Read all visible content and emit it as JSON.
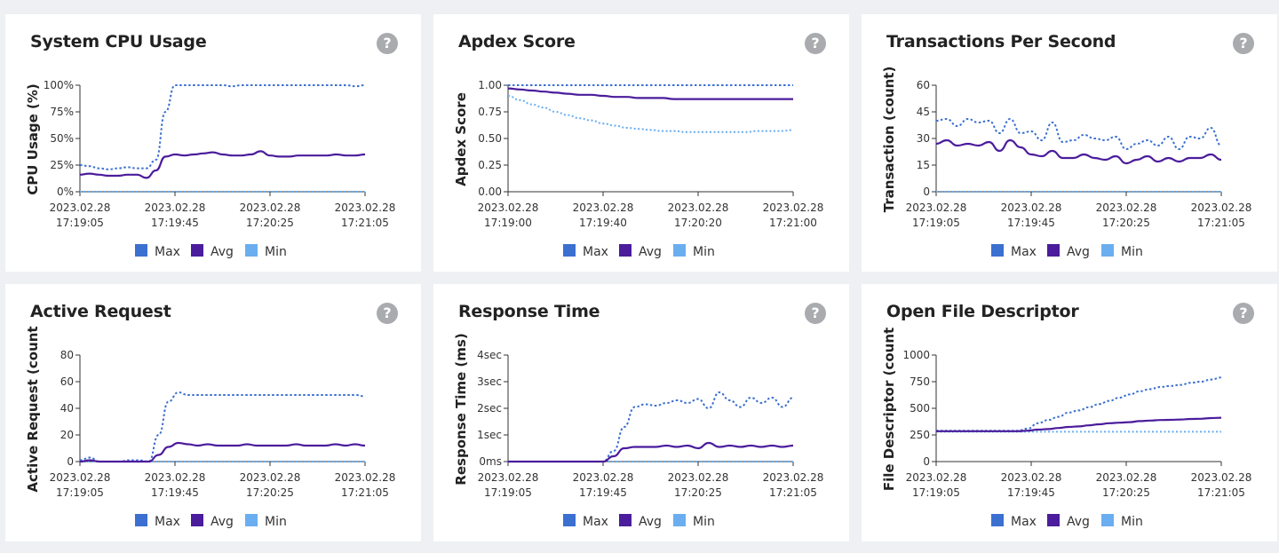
{
  "legend_colors": {
    "Max": "#3b6fd0",
    "Avg": "#4b1c9c",
    "Min": "#6aaef0"
  },
  "help_icon": "question-circle-icon",
  "chart_data": [
    {
      "id": "cpu",
      "title": "System CPU Usage",
      "type": "line",
      "xlabel": "",
      "ylabel": "CPU Usage (%)",
      "yticks": [
        "0%",
        "25%",
        "50%",
        "75%",
        "100%"
      ],
      "ylim": [
        0,
        100
      ],
      "xticks": [
        [
          "2023.02.28",
          "17:19:05"
        ],
        [
          "2023.02.28",
          "17:19:45"
        ],
        [
          "2023.02.28",
          "17:20:25"
        ],
        [
          "2023.02.28",
          "17:21:05"
        ]
      ],
      "legend": [
        "Max",
        "Avg",
        "Min"
      ],
      "legend_position": "bottom",
      "series": [
        {
          "name": "Max",
          "style": "dotted",
          "values": [
            25,
            24,
            22,
            21,
            22,
            23,
            22,
            22,
            30,
            75,
            100,
            100,
            100,
            100,
            100,
            100,
            99,
            100,
            100,
            100,
            100,
            100,
            100,
            100,
            100,
            100,
            100,
            100,
            100,
            99,
            100
          ]
        },
        {
          "name": "Avg",
          "style": "solid",
          "values": [
            16,
            17,
            16,
            15,
            15,
            16,
            16,
            13,
            20,
            33,
            35,
            34,
            35,
            36,
            37,
            35,
            34,
            34,
            35,
            38,
            34,
            33,
            33,
            34,
            34,
            34,
            34,
            35,
            34,
            34,
            35
          ]
        },
        {
          "name": "Min",
          "style": "dotted",
          "values": [
            0,
            0,
            0,
            0,
            0,
            0,
            0,
            0,
            0,
            0,
            0,
            0,
            0,
            0,
            0,
            0,
            0,
            0,
            0,
            0,
            0,
            0,
            0,
            0,
            0,
            0,
            0,
            0,
            0,
            0,
            0
          ]
        }
      ]
    },
    {
      "id": "apdex",
      "title": "Apdex Score",
      "type": "line",
      "xlabel": "",
      "ylabel": "Apdex Score",
      "yticks": [
        "0.00",
        "0.25",
        "0.50",
        "0.75",
        "1.00"
      ],
      "ylim": [
        0,
        1
      ],
      "xticks": [
        [
          "2023.02.28",
          "17:19:00"
        ],
        [
          "2023.02.28",
          "17:19:40"
        ],
        [
          "2023.02.28",
          "17:20:20"
        ],
        [
          "2023.02.28",
          "17:21:00"
        ]
      ],
      "legend": [
        "Max",
        "Avg",
        "Min"
      ],
      "legend_position": "bottom",
      "series": [
        {
          "name": "Max",
          "style": "dotted",
          "values": [
            1,
            1,
            1,
            1,
            1,
            1,
            1,
            1,
            1,
            1,
            1,
            1,
            1,
            1,
            1,
            1,
            1,
            1,
            1,
            1,
            1,
            1,
            1,
            1,
            1
          ]
        },
        {
          "name": "Avg",
          "style": "solid",
          "values": [
            0.97,
            0.96,
            0.95,
            0.94,
            0.93,
            0.92,
            0.91,
            0.91,
            0.9,
            0.89,
            0.89,
            0.88,
            0.88,
            0.88,
            0.87,
            0.87,
            0.87,
            0.87,
            0.87,
            0.87,
            0.87,
            0.87,
            0.87,
            0.87,
            0.87
          ]
        },
        {
          "name": "Min",
          "style": "dotted",
          "values": [
            0.9,
            0.86,
            0.82,
            0.79,
            0.75,
            0.72,
            0.69,
            0.67,
            0.64,
            0.62,
            0.6,
            0.59,
            0.58,
            0.57,
            0.57,
            0.56,
            0.56,
            0.56,
            0.56,
            0.56,
            0.56,
            0.57,
            0.57,
            0.57,
            0.58
          ]
        }
      ]
    },
    {
      "id": "tps",
      "title": "Transactions Per Second",
      "type": "line",
      "xlabel": "",
      "ylabel": "Transaction (count)",
      "yticks": [
        "0",
        "15",
        "30",
        "45",
        "60"
      ],
      "ylim": [
        0,
        60
      ],
      "xticks": [
        [
          "2023.02.28",
          "17:19:05"
        ],
        [
          "2023.02.28",
          "17:19:45"
        ],
        [
          "2023.02.28",
          "17:20:25"
        ],
        [
          "2023.02.28",
          "17:21:05"
        ]
      ],
      "legend": [
        "Max",
        "Avg",
        "Min"
      ],
      "legend_position": "bottom",
      "series": [
        {
          "name": "Max",
          "style": "dotted",
          "values": [
            40,
            41,
            37,
            41,
            39,
            40,
            33,
            41,
            33,
            34,
            29,
            39,
            28,
            29,
            32,
            30,
            29,
            31,
            24,
            27,
            29,
            26,
            31,
            24,
            31,
            30,
            36,
            26
          ]
        },
        {
          "name": "Avg",
          "style": "solid",
          "values": [
            27,
            29,
            26,
            27,
            26,
            28,
            23,
            29,
            25,
            21,
            20,
            23,
            19,
            19,
            21,
            19,
            18,
            20,
            16,
            18,
            20,
            17,
            19,
            17,
            19,
            19,
            21,
            18
          ]
        },
        {
          "name": "Min",
          "style": "dotted",
          "values": [
            0,
            0,
            0,
            0,
            0,
            0,
            0,
            0,
            0,
            0,
            0,
            0,
            0,
            0,
            0,
            0,
            0,
            0,
            0,
            0,
            0,
            0,
            0,
            0,
            0,
            0,
            0,
            0
          ]
        }
      ]
    },
    {
      "id": "active",
      "title": "Active Request",
      "type": "line",
      "xlabel": "",
      "ylabel": "Active Request (count",
      "yticks": [
        "0",
        "20",
        "40",
        "60",
        "80"
      ],
      "ylim": [
        0,
        80
      ],
      "xticks": [
        [
          "2023.02.28",
          "17:19:05"
        ],
        [
          "2023.02.28",
          "17:19:45"
        ],
        [
          "2023.02.28",
          "17:20:25"
        ],
        [
          "2023.02.28",
          "17:21:05"
        ]
      ],
      "legend": [
        "Max",
        "Avg",
        "Min"
      ],
      "legend_position": "bottom",
      "series": [
        {
          "name": "Max",
          "style": "dotted",
          "values": [
            1,
            3,
            0,
            0,
            0,
            1,
            1,
            0,
            20,
            45,
            52,
            50,
            50,
            50,
            50,
            50,
            50,
            50,
            50,
            50,
            50,
            50,
            50,
            50,
            50,
            50,
            50,
            50,
            50,
            49
          ]
        },
        {
          "name": "Avg",
          "style": "solid",
          "values": [
            0,
            1,
            0,
            0,
            0,
            0,
            0,
            0,
            5,
            11,
            14,
            13,
            12,
            13,
            12,
            12,
            12,
            13,
            12,
            12,
            12,
            12,
            13,
            12,
            12,
            12,
            13,
            12,
            13,
            12
          ]
        },
        {
          "name": "Min",
          "style": "dotted",
          "values": [
            0,
            0,
            0,
            0,
            0,
            0,
            0,
            0,
            0,
            0,
            0,
            0,
            0,
            0,
            0,
            0,
            0,
            0,
            0,
            0,
            0,
            0,
            0,
            0,
            0,
            0,
            0,
            0,
            0,
            0
          ]
        }
      ]
    },
    {
      "id": "resp",
      "title": "Response Time",
      "type": "line",
      "xlabel": "",
      "ylabel": "Response Time (ms)",
      "yticks": [
        "0ms",
        "1sec",
        "2sec",
        "3sec",
        "4sec"
      ],
      "ylim": [
        0,
        4
      ],
      "xticks": [
        [
          "2023.02.28",
          "17:19:05"
        ],
        [
          "2023.02.28",
          "17:19:45"
        ],
        [
          "2023.02.28",
          "17:20:25"
        ],
        [
          "2023.02.28",
          "17:21:05"
        ]
      ],
      "legend": [
        "Max",
        "Avg",
        "Min"
      ],
      "legend_position": "bottom",
      "series": [
        {
          "name": "Max",
          "style": "dotted",
          "values": [
            0,
            0,
            0,
            0,
            0,
            0,
            0,
            0,
            0,
            0,
            0.4,
            1.3,
            2.05,
            2.15,
            2.1,
            2.2,
            2.3,
            2.2,
            2.35,
            2.0,
            2.6,
            2.3,
            2.05,
            2.4,
            2.2,
            2.4,
            2.05,
            2.4
          ]
        },
        {
          "name": "Avg",
          "style": "solid",
          "values": [
            0,
            0,
            0,
            0,
            0,
            0,
            0,
            0,
            0,
            0,
            0.2,
            0.5,
            0.55,
            0.55,
            0.55,
            0.6,
            0.55,
            0.6,
            0.5,
            0.7,
            0.55,
            0.6,
            0.55,
            0.6,
            0.55,
            0.6,
            0.55,
            0.6
          ]
        },
        {
          "name": "Min",
          "style": "dotted",
          "values": [
            0,
            0,
            0,
            0,
            0,
            0,
            0,
            0,
            0,
            0,
            0,
            0,
            0,
            0,
            0,
            0,
            0,
            0,
            0,
            0,
            0,
            0,
            0,
            0,
            0,
            0,
            0,
            0
          ]
        }
      ]
    },
    {
      "id": "fd",
      "title": "Open File Descriptor",
      "type": "line",
      "xlabel": "",
      "ylabel": "File Descriptor (count",
      "yticks": [
        "0",
        "250",
        "500",
        "750",
        "1000"
      ],
      "ylim": [
        0,
        1000
      ],
      "xticks": [
        [
          "2023.02.28",
          "17:19:05"
        ],
        [
          "2023.02.28",
          "17:19:45"
        ],
        [
          "2023.02.28",
          "17:20:25"
        ],
        [
          "2023.02.28",
          "17:21:05"
        ]
      ],
      "legend": [
        "Max",
        "Avg",
        "Min"
      ],
      "legend_position": "bottom",
      "series": [
        {
          "name": "Max",
          "style": "dotted",
          "values": [
            290,
            290,
            290,
            290,
            290,
            290,
            290,
            290,
            290,
            310,
            360,
            390,
            420,
            460,
            480,
            510,
            540,
            570,
            600,
            630,
            660,
            680,
            700,
            710,
            720,
            740,
            750,
            770,
            790
          ]
        },
        {
          "name": "Avg",
          "style": "solid",
          "values": [
            285,
            285,
            285,
            285,
            285,
            285,
            285,
            285,
            285,
            290,
            300,
            305,
            315,
            325,
            330,
            340,
            350,
            360,
            365,
            370,
            380,
            385,
            390,
            392,
            395,
            400,
            402,
            408,
            412
          ]
        },
        {
          "name": "Min",
          "style": "dotted",
          "values": [
            280,
            280,
            280,
            280,
            280,
            280,
            280,
            280,
            280,
            280,
            280,
            280,
            280,
            280,
            280,
            280,
            280,
            280,
            280,
            280,
            280,
            280,
            280,
            280,
            280,
            280,
            280,
            280,
            280
          ]
        }
      ]
    }
  ]
}
